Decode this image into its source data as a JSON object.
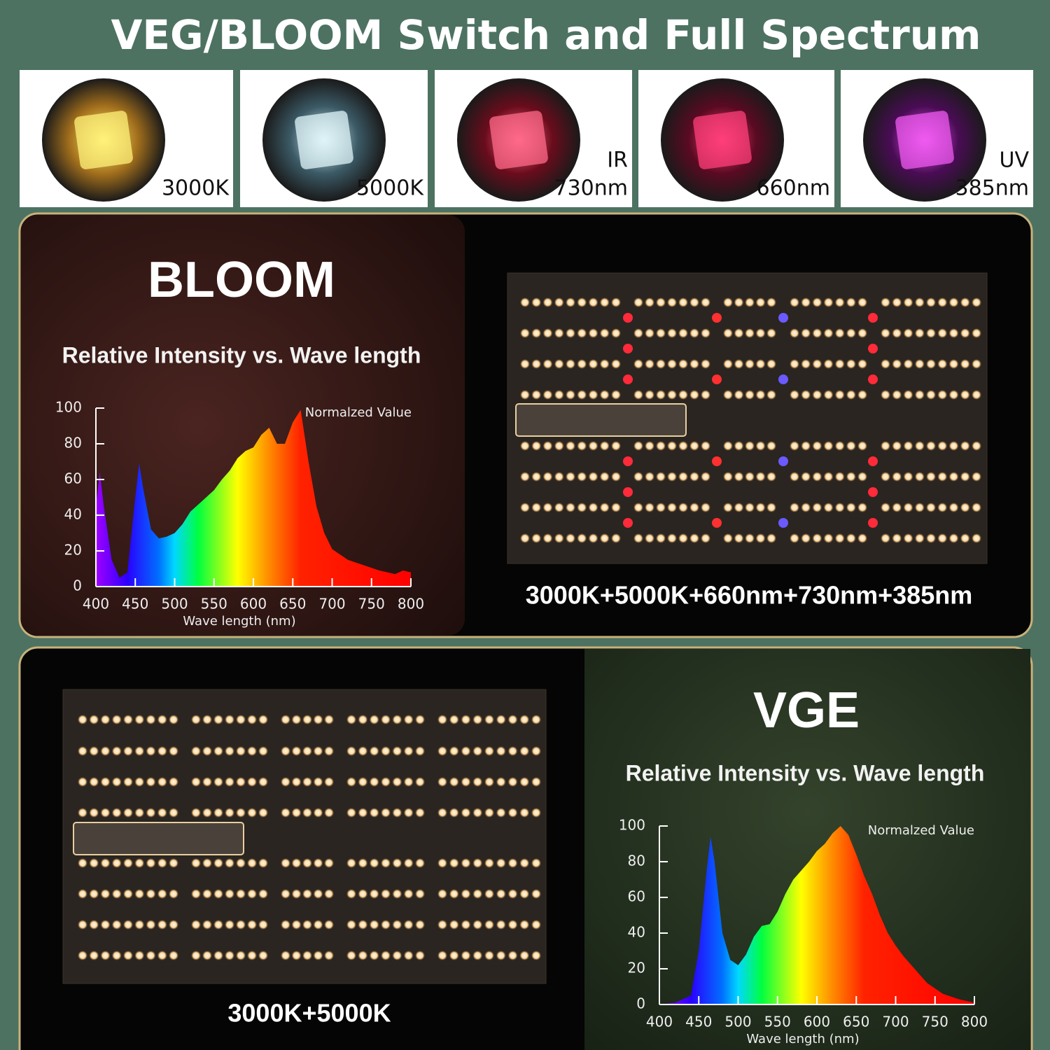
{
  "title": "VEG/BLOOM Switch and Full Spectrum",
  "leds": [
    {
      "label": [
        "3000K"
      ]
    },
    {
      "label": [
        "5000K"
      ]
    },
    {
      "label": [
        "IR",
        "730nm"
      ]
    },
    {
      "label": [
        "660nm"
      ]
    },
    {
      "label": [
        "UV",
        "385nm"
      ]
    }
  ],
  "panels": [
    {
      "heading": "BLOOM",
      "caption": "3000K+5000K+660nm+730nm+385nm"
    },
    {
      "heading": "VGE",
      "caption": "3000K+5000K"
    }
  ],
  "chart_data": [
    {
      "type": "area",
      "title": "Relative Intensity vs. Wave length",
      "x_label": "Wave length (nm)",
      "x": [
        400,
        405,
        410,
        420,
        430,
        440,
        450,
        455,
        460,
        470,
        480,
        490,
        500,
        510,
        520,
        530,
        540,
        550,
        560,
        570,
        580,
        590,
        600,
        610,
        620,
        630,
        640,
        650,
        660,
        670,
        680,
        690,
        700,
        720,
        740,
        760,
        780,
        790,
        800
      ],
      "series": [
        {
          "name": "Normalzed Value",
          "values": [
            45,
            64,
            45,
            15,
            5,
            8,
            50,
            69,
            55,
            32,
            27,
            28,
            30,
            35,
            42,
            46,
            50,
            54,
            60,
            65,
            72,
            76,
            78,
            85,
            89,
            80,
            80,
            92,
            99,
            70,
            45,
            30,
            21,
            15,
            12,
            9,
            7,
            9,
            8
          ]
        }
      ],
      "xlim": [
        400,
        800
      ],
      "ylim": [
        0,
        100
      ],
      "xticks": [
        400,
        450,
        500,
        550,
        600,
        650,
        700,
        750,
        800
      ],
      "yticks": [
        0,
        20,
        40,
        60,
        80,
        100
      ]
    },
    {
      "type": "area",
      "title": "Relative Intensity vs. Wave length",
      "x_label": "Wave length (nm)",
      "x": [
        400,
        420,
        440,
        450,
        460,
        465,
        470,
        480,
        490,
        500,
        510,
        520,
        530,
        540,
        550,
        560,
        570,
        580,
        590,
        600,
        610,
        620,
        630,
        640,
        650,
        660,
        670,
        680,
        690,
        700,
        710,
        720,
        740,
        760,
        780,
        800
      ],
      "series": [
        {
          "name": "Normalzed Value",
          "values": [
            0,
            1,
            5,
            30,
            75,
            94,
            80,
            40,
            25,
            22,
            28,
            38,
            44,
            45,
            52,
            62,
            70,
            75,
            80,
            86,
            90,
            96,
            100,
            95,
            84,
            72,
            62,
            50,
            40,
            33,
            27,
            22,
            12,
            6,
            3,
            1
          ]
        }
      ],
      "xlim": [
        400,
        800
      ],
      "ylim": [
        0,
        100
      ],
      "xticks": [
        400,
        450,
        500,
        550,
        600,
        650,
        700,
        750,
        800
      ],
      "yticks": [
        0,
        20,
        40,
        60,
        80,
        100
      ]
    }
  ]
}
